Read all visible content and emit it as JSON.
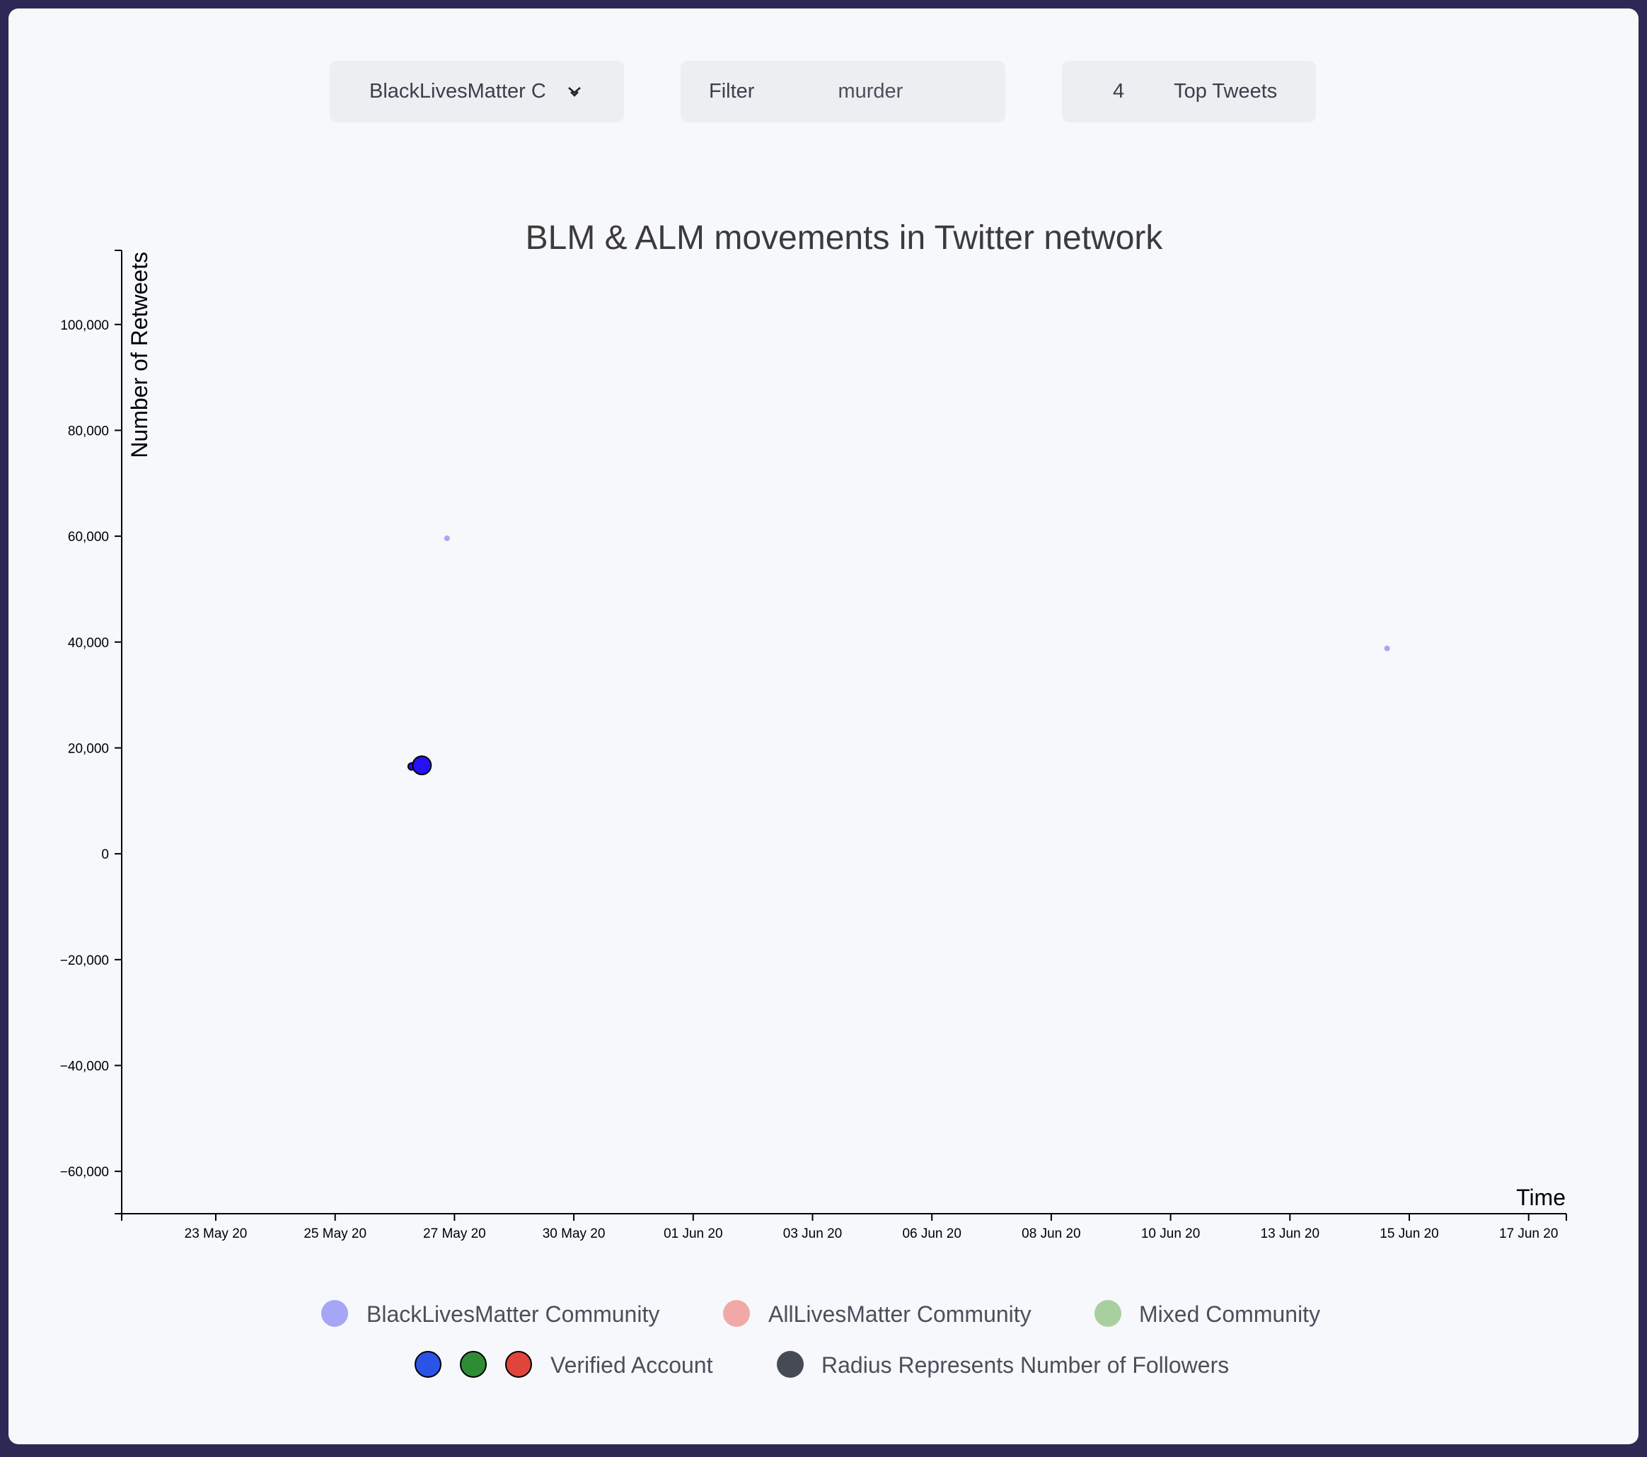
{
  "controls": {
    "community_select": {
      "value": "BlackLivesMatter C"
    },
    "filter": {
      "label": "Filter",
      "value": "murder"
    },
    "top_tweets": {
      "count": "4",
      "label": "Top Tweets"
    }
  },
  "chart_data": {
    "type": "scatter",
    "title": "BLM & ALM movements in Twitter network",
    "xlabel": "Time",
    "ylabel": "Number of Retweets",
    "x_ticks": [
      "23 May 20",
      "25 May 20",
      "27 May 20",
      "30 May 20",
      "01 Jun 20",
      "03 Jun 20",
      "06 Jun 20",
      "08 Jun 20",
      "10 Jun 20",
      "13 Jun 20",
      "15 Jun 20",
      "17 Jun 20"
    ],
    "y_ticks": [
      -60000,
      -40000,
      -20000,
      0,
      20000,
      40000,
      60000,
      80000,
      100000
    ],
    "y_tick_labels": [
      "−60,000",
      "−40,000",
      "−20,000",
      "0",
      "20,000",
      "40,000",
      "60,000",
      "80,000",
      "100,000"
    ],
    "xlim": [
      "2020-05-21",
      "2020-06-17"
    ],
    "ylim": [
      -68000,
      114000
    ],
    "grid": false,
    "points": [
      {
        "date": "2020-05-26",
        "retweets": 16500,
        "community": "BlackLivesMatter Community",
        "verified": true,
        "followers_level": "small"
      },
      {
        "date": "2020-05-26",
        "retweets": 16700,
        "community": "BlackLivesMatter Community",
        "verified": true,
        "followers_level": "large"
      },
      {
        "date": "2020-05-27",
        "retweets": 59600,
        "community": "BlackLivesMatter Community",
        "verified": false,
        "followers_level": "tiny"
      },
      {
        "date": "2020-06-13",
        "retweets": 38800,
        "community": "BlackLivesMatter Community",
        "verified": false,
        "followers_level": "tiny"
      }
    ],
    "legend": {
      "communities": [
        {
          "label": "BlackLivesMatter Community",
          "color": "#a5a6f6"
        },
        {
          "label": "AllLivesMatter Community",
          "color": "#f0a9a7"
        },
        {
          "label": "Mixed Community",
          "color": "#a9cf9f"
        }
      ],
      "verified": {
        "label": "Verified Account",
        "colors": [
          "#2a53e8",
          "#2e8c34",
          "#e0443a"
        ]
      },
      "radius": {
        "label": "Radius Represents Number of Followers",
        "color": "#454a55"
      }
    },
    "colors": {
      "blm_unverified": "#a5a6f6",
      "blm_verified": "#2511f5",
      "axis": "#000000",
      "title": "#3b3b3b"
    }
  }
}
